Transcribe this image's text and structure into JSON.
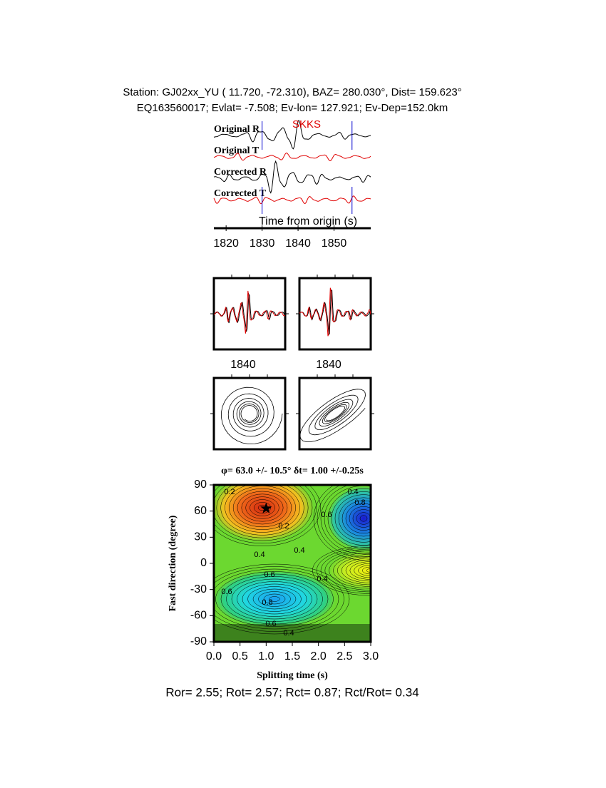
{
  "header": {
    "line1": "Station: GJ02xx_YU (  11.720,  -72.310), BAZ=  280.030°, Dist=  159.623°",
    "line2": "EQ163560017; Evlat=  -7.508; Ev-lon= 127.921; Ev-Dep=152.0km"
  },
  "traces": {
    "labels": [
      "Original R",
      "Original T",
      "Corrected R",
      "Corrected T"
    ],
    "phase": "SKKS",
    "xlabel": "Time from origin (s)",
    "xlim": [
      1816.6,
      1860.2
    ],
    "xticks": [
      1820,
      1830,
      1840,
      1850
    ],
    "window": [
      1830,
      1855
    ]
  },
  "windows": {
    "xticks": [
      1840,
      1840
    ]
  },
  "grid_search": {
    "title": "φ= 63.0 +/- 10.5° δt= 1.00 +/-0.25s",
    "xlabel": "Splitting time (s)",
    "ylabel": "Fast direction (degree)",
    "xlim": [
      0,
      3
    ],
    "ylim": [
      -90,
      90
    ],
    "xticks": [
      {
        "value": 0,
        "label": "0.0"
      },
      0.5,
      {
        "value": 1,
        "label": "1.0"
      },
      1.5,
      {
        "value": 2,
        "label": "2.0"
      },
      2.5,
      {
        "value": 3,
        "label": "3.0"
      }
    ],
    "yticks": [
      -90,
      -60,
      -30,
      0,
      30,
      60,
      90
    ],
    "best": {
      "dt": 1.0,
      "phi": 63.0
    },
    "contour_labels": [
      "0.2",
      "0.2",
      "0.4",
      "0.4",
      "0.6",
      "0.8",
      "0.4",
      "0.6",
      "0.4",
      "0.6",
      "0.8",
      "0.6",
      "0.4"
    ]
  },
  "footer": "Ror= 2.55; Rot= 2.57; Rct= 0.87; Rct/Rot= 0.34"
}
